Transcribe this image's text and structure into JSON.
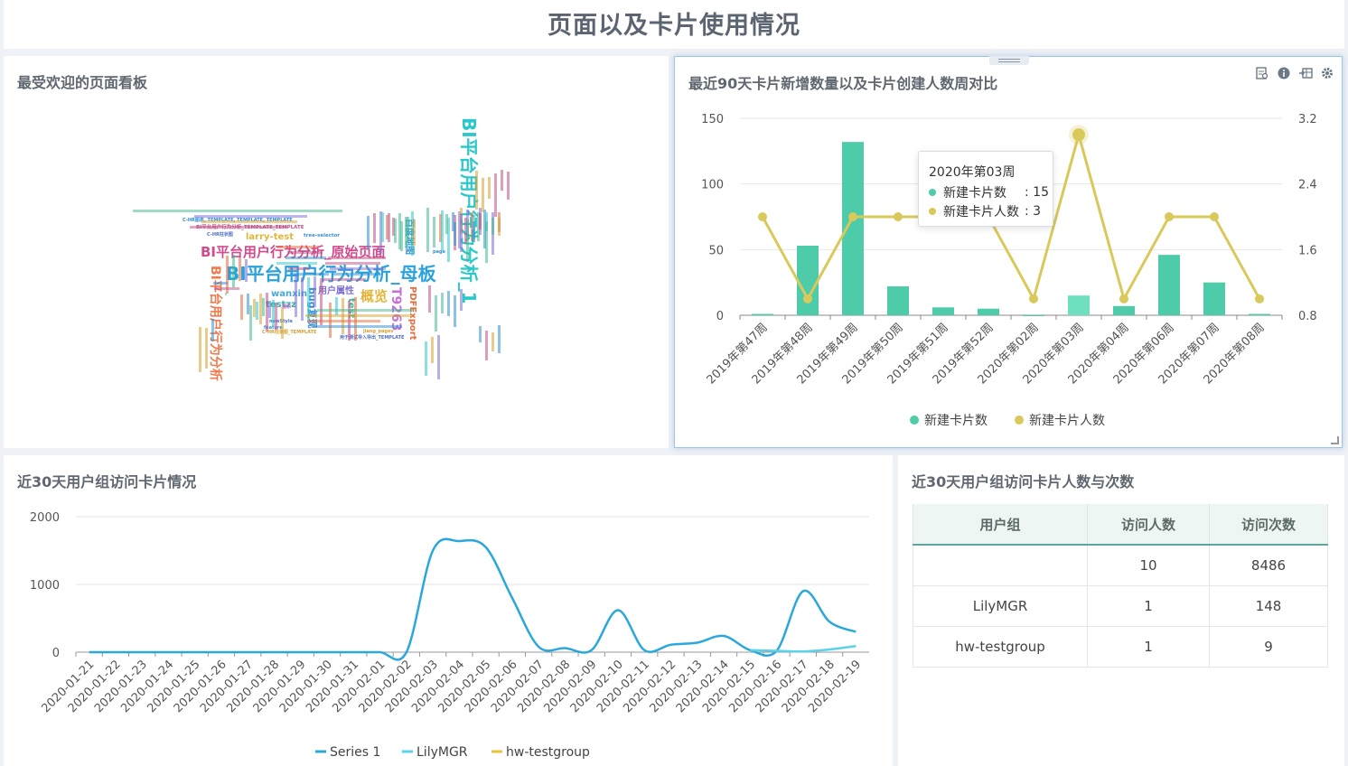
{
  "page": {
    "title": "页面以及卡片使用情况"
  },
  "panels": {
    "wordcloud": {
      "title": "最受欢迎的页面看板"
    },
    "weekly": {
      "title": "最近90天卡片新增数量以及卡片创建人数周对比",
      "tools": [
        "data-view-icon",
        "info-icon",
        "export-icon",
        "settings-icon"
      ]
    },
    "group_visits": {
      "title": "近30天用户组访问卡片情况"
    },
    "group_table": {
      "title": "近30天用户组访问卡片人数与次数"
    }
  },
  "wordcloud_words": [
    {
      "text": "BI平台用户行为分析_母板",
      "color": "#2aa2dc"
    },
    {
      "text": "BI平台用户行为分析_原始页面",
      "color": "#d34b8c"
    },
    {
      "text": "BI平台用户行为分析_1",
      "color": "#2ac9c9"
    },
    {
      "text": "BI平台用户行为分析",
      "color": "#ef7a4e"
    },
    {
      "text": "larry-test",
      "color": "#e2b63c"
    },
    {
      "text": "概览",
      "color": "#e2b63c"
    },
    {
      "text": "T9263",
      "color": "#c56fd6"
    },
    {
      "text": "PDFExport",
      "color": "#e26c3c"
    },
    {
      "text": "百度地图",
      "color": "#2e8fd4"
    },
    {
      "text": "wanxin",
      "color": "#4aa6d9"
    },
    {
      "text": "testzz",
      "color": "#36b0a4"
    },
    {
      "text": "用户属性",
      "color": "#7b6ed6"
    },
    {
      "text": "bug复现",
      "color": "#3b8ed8"
    },
    {
      "text": "test",
      "color": "#3fb88f"
    },
    {
      "text": "C-HR图表, TEMPLATE, TEMPLATE, TEMPLATE",
      "color": "#2e8fd4"
    },
    {
      "text": "BI平台用户行为分析_TEMPLATE_TEMPLATE",
      "color": "#c04f87"
    },
    {
      "text": "C-HR柱状图",
      "color": "#4a6fc9"
    },
    {
      "text": "tree-selector",
      "color": "#3b8ed8"
    },
    {
      "text": "page",
      "color": "#2e8fd4"
    },
    {
      "text": "newStyle",
      "color": "#4a6fc9"
    },
    {
      "text": "jiang_pages",
      "color": "#d7a130"
    },
    {
      "text": "用于测试导入导出_TEMPLATE",
      "color": "#4a6fc9"
    },
    {
      "text": "需求",
      "color": "#bb6cd1"
    },
    {
      "text": "feature",
      "color": "#3b8ed8"
    },
    {
      "text": "C-HR柱状图_TEMPLATE",
      "color": "#d7a130"
    }
  ],
  "weekly_chart": {
    "chart_data": {
      "type": "bar",
      "title": "最近90天卡片新增数量以及卡片创建人数周对比",
      "categories": [
        "2019年第47周",
        "2019年第48周",
        "2019年第49周",
        "2019年第50周",
        "2019年第51周",
        "2019年第52周",
        "2020年第02周",
        "2020年第03周",
        "2020年第04周",
        "2020年第06周",
        "2020年第07周",
        "2020年第08周"
      ],
      "series": [
        {
          "name": "新建卡片数",
          "type": "bar",
          "axis": "left",
          "color": "#4ecba8",
          "values": [
            1,
            53,
            132,
            22,
            6,
            5,
            0,
            15,
            7,
            46,
            25,
            1
          ]
        },
        {
          "name": "新建卡片人数",
          "type": "line",
          "axis": "right",
          "color": "#d9c95b",
          "values": [
            2,
            1,
            2,
            2,
            2,
            2,
            1,
            3,
            1,
            2,
            2,
            1
          ]
        }
      ],
      "ylim_left": [
        0,
        150
      ],
      "ylim_right": [
        0.8,
        3.2
      ],
      "yticks_left": [
        "0",
        "50",
        "100",
        "150"
      ],
      "yticks_right": [
        "0.8",
        "1.6",
        "2.4",
        "3.2"
      ],
      "highlight_index": 7,
      "legend_position": "bottom"
    },
    "tooltip": {
      "title": "2020年第03周",
      "bar_label": "新建卡片数",
      "bar_value": ": 15",
      "line_label": "新建卡片人数",
      "line_value": ": 3"
    }
  },
  "visits_chart": {
    "chart_data": {
      "type": "line",
      "title": "近30天用户组访问卡片情况",
      "categories": [
        "2020-01-21",
        "2020-01-22",
        "2020-01-23",
        "2020-01-24",
        "2020-01-25",
        "2020-01-26",
        "2020-01-27",
        "2020-01-28",
        "2020-01-29",
        "2020-01-30",
        "2020-01-31",
        "2020-02-01",
        "2020-02-02",
        "2020-02-03",
        "2020-02-04",
        "2020-02-05",
        "2020-02-06",
        "2020-02-07",
        "2020-02-08",
        "2020-02-09",
        "2020-02-10",
        "2020-02-11",
        "2020-02-12",
        "2020-02-13",
        "2020-02-14",
        "2020-02-15",
        "2020-02-16",
        "2020-02-17",
        "2020-02-18",
        "2020-02-19"
      ],
      "series": [
        {
          "name": "Series 1",
          "color": "#2aa8db",
          "values": [
            0,
            0,
            0,
            0,
            0,
            0,
            0,
            0,
            0,
            0,
            0,
            0,
            0,
            1500,
            1640,
            1550,
            800,
            80,
            60,
            30,
            620,
            30,
            110,
            140,
            240,
            30,
            20,
            900,
            450,
            300
          ]
        },
        {
          "name": "LilyMGR",
          "color": "#59d3e8",
          "values": [
            null,
            null,
            null,
            null,
            null,
            null,
            null,
            null,
            null,
            null,
            null,
            null,
            null,
            null,
            null,
            null,
            null,
            null,
            null,
            null,
            null,
            null,
            null,
            null,
            null,
            30,
            20,
            10,
            40,
            90
          ]
        },
        {
          "name": "hw-testgroup",
          "color": "#e8c53e",
          "values": [
            null,
            null,
            null,
            null,
            null,
            null,
            null,
            null,
            null,
            null,
            null,
            null,
            null,
            null,
            null,
            null,
            null,
            null,
            null,
            null,
            null,
            null,
            null,
            null,
            null,
            null,
            null,
            null,
            null,
            null
          ]
        }
      ],
      "ylim": [
        0,
        2000
      ],
      "yticks": [
        "0",
        "1000",
        "2000"
      ],
      "legend_position": "bottom"
    }
  },
  "group_table": {
    "headers": [
      "用户组",
      "访问人数",
      "访问次数"
    ],
    "rows": [
      {
        "group": "",
        "users": "10",
        "visits": "8486"
      },
      {
        "group": "LilyMGR",
        "users": "1",
        "visits": "148"
      },
      {
        "group": "hw-testgroup",
        "users": "1",
        "visits": "9"
      }
    ]
  }
}
